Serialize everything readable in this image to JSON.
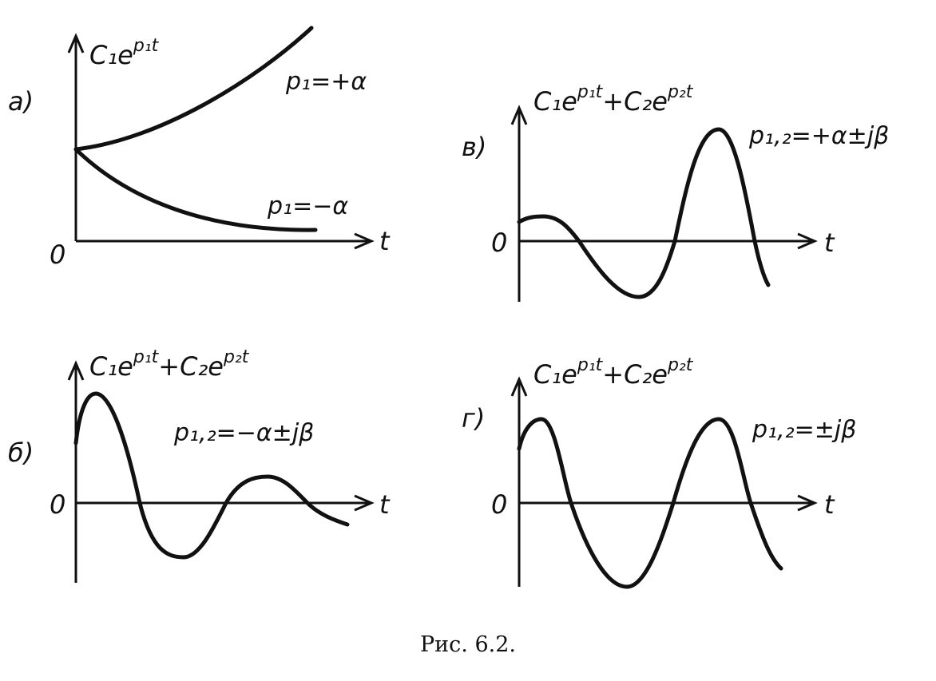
{
  "panels": [
    {
      "letter": "а)",
      "zero": "0",
      "t": "t",
      "ylabel": {
        "main": "C₁e",
        "sup": "p₁t"
      },
      "annotations": [
        "p₁=+α",
        "p₁=−α"
      ]
    },
    {
      "letter": "в)",
      "zero": "0",
      "t": "t",
      "ylabel": {
        "main": "C₁e",
        "sup": "p₁t",
        "main2": "+C₂e",
        "sup2": "p₂t"
      },
      "annotations": [
        "p₁,₂=+α±jβ"
      ]
    },
    {
      "letter": "б)",
      "zero": "0",
      "t": "t",
      "ylabel": {
        "main": "C₁e",
        "sup": "p₁t",
        "main2": "+C₂e",
        "sup2": "p₂t"
      },
      "annotations": [
        "p₁,₂=−α±jβ"
      ]
    },
    {
      "letter": "г)",
      "zero": "0",
      "t": "t",
      "ylabel": {
        "main": "C₁e",
        "sup": "p₁t",
        "main2": "+C₂e",
        "sup2": "p₂t"
      },
      "annotations": [
        "p₁,₂=±jβ"
      ]
    }
  ],
  "caption": "Рис. 6.2."
}
